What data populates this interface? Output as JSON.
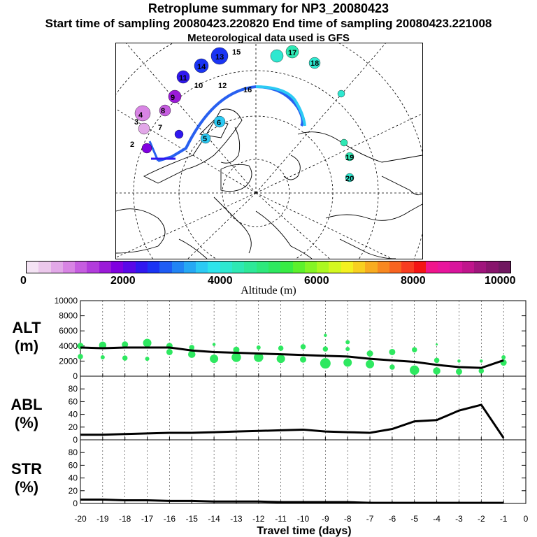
{
  "title": "Retroplume summary for NP3_20080423",
  "sampling": "Start time of sampling 20080423.220820     End time of sampling 20080423.221008",
  "met_data": "Meteorological data used is GFS",
  "colorbar": {
    "label": "Altitude (m)",
    "ticks": [
      "0",
      "2000",
      "4000",
      "6000",
      "8000",
      "10000"
    ],
    "colors": [
      "#f4e3f4",
      "#ecc8ec",
      "#e2a8e8",
      "#d884e4",
      "#c65de0",
      "#b23cdc",
      "#9b1ad8",
      "#8000e0",
      "#5a08e8",
      "#3018f0",
      "#1a34f4",
      "#1e5cf4",
      "#2284f4",
      "#26a8f4",
      "#2ccaf4",
      "#2ee4ec",
      "#2ee8d0",
      "#2ee8b4",
      "#2ee898",
      "#2ee87c",
      "#2ee860",
      "#38ec44",
      "#5cf02c",
      "#84f424",
      "#acf820",
      "#d4f820",
      "#f4f020",
      "#f8d020",
      "#f8ac20",
      "#f88820",
      "#f86420",
      "#f83c20",
      "#f41414",
      "#f0148c",
      "#e8149c",
      "#d8149c",
      "#c0148c",
      "#a0147c",
      "#88146c",
      "#701860"
    ]
  },
  "panels": {
    "alt": {
      "label_top": "ALT",
      "label_bottom": "(m)"
    },
    "abl": {
      "label_top": "ABL",
      "label_bottom": "(%)"
    },
    "str": {
      "label_top": "STR",
      "label_bottom": "(%)"
    }
  },
  "xaxis": {
    "label": "Travel time (days)"
  },
  "map": {
    "trajectory_labels": [
      {
        "text": "13"
      },
      {
        "text": "14"
      },
      {
        "text": "15"
      },
      {
        "text": "12"
      },
      {
        "text": "11"
      },
      {
        "text": "10"
      },
      {
        "text": "9"
      },
      {
        "text": "8"
      },
      {
        "text": "7"
      },
      {
        "text": "5"
      },
      {
        "text": "4"
      },
      {
        "text": "3"
      },
      {
        "text": "2"
      },
      {
        "text": "6"
      },
      {
        "text": "16"
      },
      {
        "text": "17"
      },
      {
        "text": "18"
      },
      {
        "text": "19"
      },
      {
        "text": "20"
      }
    ]
  },
  "chart_data": [
    {
      "type": "line",
      "title": "ALT",
      "ylabel": "ALT (m)",
      "xlabel": "Travel time (days)",
      "xlim": [
        -20,
        0
      ],
      "ylim": [
        0,
        10000
      ],
      "yticks": [
        0,
        2000,
        4000,
        6000,
        8000,
        10000
      ],
      "xticks": [
        -20,
        -19,
        -18,
        -17,
        -16,
        -15,
        -14,
        -13,
        -12,
        -11,
        -10,
        -9,
        -8,
        -7,
        -6,
        -5,
        -4,
        -3,
        -2,
        -1,
        0
      ],
      "series": [
        {
          "name": "mean altitude",
          "x": [
            -20,
            -19,
            -18,
            -17,
            -16,
            -15,
            -14,
            -13,
            -12,
            -11,
            -10,
            -9,
            -8,
            -7,
            -6,
            -5,
            -4,
            -3,
            -2,
            -1
          ],
          "y": [
            3800,
            3700,
            3800,
            3800,
            3800,
            3400,
            3200,
            3100,
            3000,
            2900,
            2800,
            2700,
            2600,
            2300,
            2100,
            1900,
            1500,
            1200,
            1100,
            2100
          ]
        },
        {
          "name": "cluster altitudes",
          "points": [
            {
              "x": -20,
              "y": 4000,
              "s": 6
            },
            {
              "x": -20,
              "y": 2600,
              "s": 5
            },
            {
              "x": -19,
              "y": 4100,
              "s": 7
            },
            {
              "x": -19,
              "y": 2500,
              "s": 4
            },
            {
              "x": -18,
              "y": 4200,
              "s": 6
            },
            {
              "x": -18,
              "y": 2400,
              "s": 5
            },
            {
              "x": -17,
              "y": 4400,
              "s": 8
            },
            {
              "x": -17,
              "y": 2300,
              "s": 4
            },
            {
              "x": -16,
              "y": 4000,
              "s": 6
            },
            {
              "x": -16,
              "y": 3200,
              "s": 6
            },
            {
              "x": -15,
              "y": 3800,
              "s": 5
            },
            {
              "x": -15,
              "y": 2900,
              "s": 7
            },
            {
              "x": -14,
              "y": 4200,
              "s": 3
            },
            {
              "x": -14,
              "y": 2300,
              "s": 8
            },
            {
              "x": -13,
              "y": 3500,
              "s": 6
            },
            {
              "x": -13,
              "y": 2500,
              "s": 9
            },
            {
              "x": -12,
              "y": 3800,
              "s": 4
            },
            {
              "x": -12,
              "y": 2500,
              "s": 9
            },
            {
              "x": -11,
              "y": 3700,
              "s": 5
            },
            {
              "x": -11,
              "y": 2300,
              "s": 8
            },
            {
              "x": -10,
              "y": 3900,
              "s": 5
            },
            {
              "x": -10,
              "y": 2200,
              "s": 6
            },
            {
              "x": -9,
              "y": 5400,
              "s": 3
            },
            {
              "x": -9,
              "y": 3600,
              "s": 5
            },
            {
              "x": -9,
              "y": 1700,
              "s": 10
            },
            {
              "x": -8,
              "y": 4500,
              "s": 4
            },
            {
              "x": -8,
              "y": 3600,
              "s": 4
            },
            {
              "x": -8,
              "y": 1800,
              "s": 8
            },
            {
              "x": -7,
              "y": 6100,
              "s": 1
            },
            {
              "x": -7,
              "y": 3000,
              "s": 6
            },
            {
              "x": -7,
              "y": 1600,
              "s": 8
            },
            {
              "x": -6,
              "y": 3200,
              "s": 6
            },
            {
              "x": -6,
              "y": 1200,
              "s": 5
            },
            {
              "x": -5,
              "y": 3500,
              "s": 5
            },
            {
              "x": -5,
              "y": 800,
              "s": 9
            },
            {
              "x": -4,
              "y": 4200,
              "s": 2
            },
            {
              "x": -4,
              "y": 2100,
              "s": 5
            },
            {
              "x": -4,
              "y": 700,
              "s": 7
            },
            {
              "x": -3,
              "y": 2000,
              "s": 3
            },
            {
              "x": -3,
              "y": 600,
              "s": 6
            },
            {
              "x": -2,
              "y": 2000,
              "s": 3
            },
            {
              "x": -2,
              "y": 700,
              "s": 5
            },
            {
              "x": -1,
              "y": 2500,
              "s": 4
            },
            {
              "x": -1,
              "y": 1800,
              "s": 6
            }
          ]
        }
      ]
    },
    {
      "type": "line",
      "title": "ABL",
      "ylabel": "ABL (%)",
      "xlim": [
        -20,
        0
      ],
      "ylim": [
        0,
        100
      ],
      "yticks": [
        0,
        20,
        40,
        60,
        80
      ],
      "series": [
        {
          "name": "ABL",
          "x": [
            -20,
            -19,
            -18,
            -17,
            -16,
            -15,
            -14,
            -13,
            -12,
            -11,
            -10,
            -9,
            -8,
            -7,
            -6,
            -5,
            -4,
            -3,
            -2,
            -1
          ],
          "y": [
            8,
            8,
            9,
            10,
            11,
            11,
            12,
            13,
            14,
            15,
            16,
            13,
            12,
            11,
            17,
            29,
            31,
            46,
            55,
            3
          ]
        }
      ]
    },
    {
      "type": "line",
      "title": "STR",
      "ylabel": "STR (%)",
      "xlim": [
        -20,
        0
      ],
      "ylim": [
        0,
        100
      ],
      "yticks": [
        0,
        20,
        40,
        60,
        80
      ],
      "series": [
        {
          "name": "STR",
          "x": [
            -20,
            -19,
            -18,
            -17,
            -16,
            -15,
            -14,
            -13,
            -12,
            -11,
            -10,
            -9,
            -8,
            -7,
            -6,
            -5,
            -4,
            -3,
            -2,
            -1
          ],
          "y": [
            6,
            6,
            5,
            5,
            4,
            4,
            3,
            3,
            3,
            2,
            2,
            2,
            2,
            1,
            1,
            1,
            1,
            1,
            1,
            1
          ]
        }
      ]
    }
  ]
}
